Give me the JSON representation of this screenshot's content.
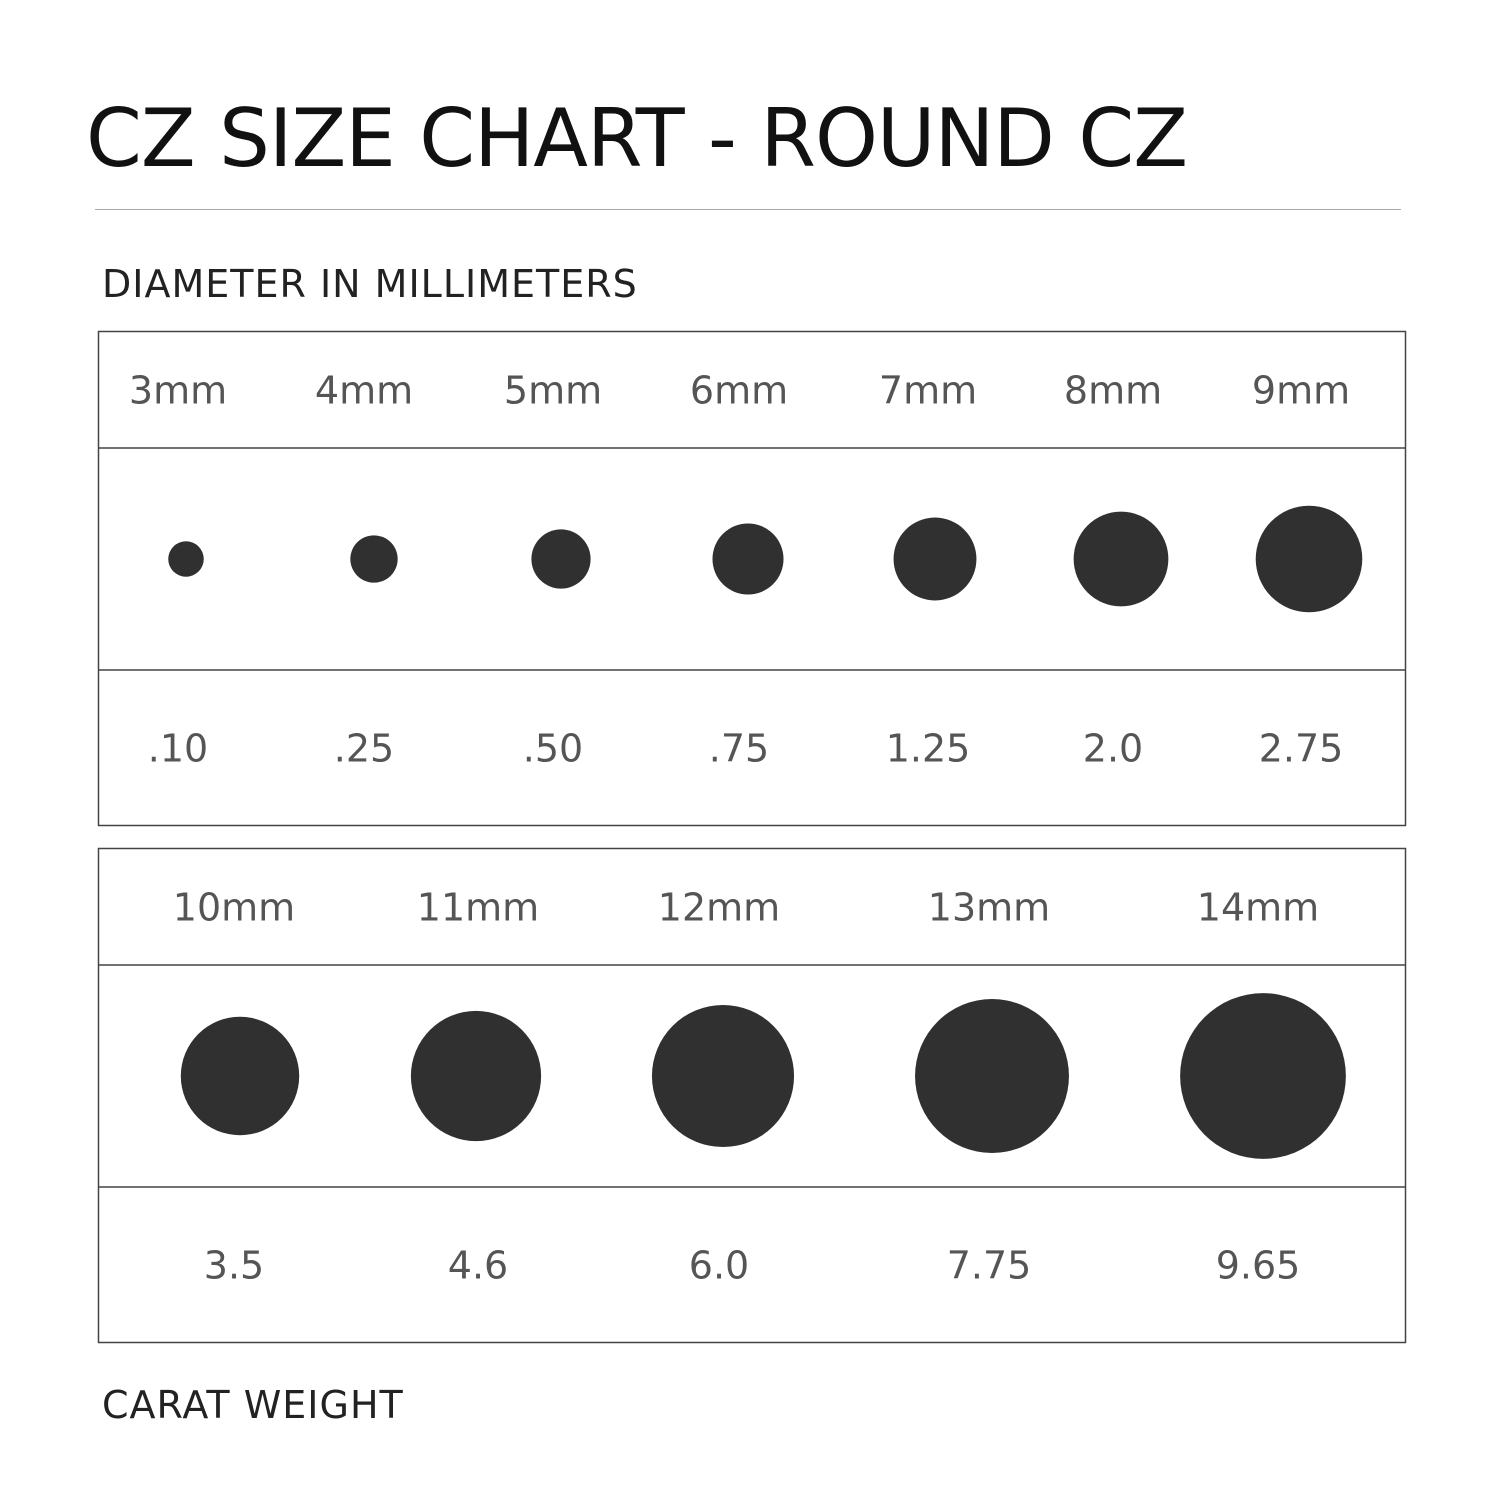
{
  "title": "CZ SIZE CHART - ROUND CZ",
  "top_label": "DIAMETER IN MILLIMETERS",
  "bottom_label": "CARAT WEIGHT",
  "colors": {
    "stone": "#303030",
    "text": "#555555",
    "border": "#444444"
  },
  "chart_data": {
    "type": "table",
    "title": "CZ SIZE CHART - ROUND CZ",
    "groups": [
      {
        "sizes": [
          "3mm",
          "4mm",
          "5mm",
          "6mm",
          "7mm",
          "8mm",
          "9mm"
        ],
        "diameters_mm": [
          3,
          4,
          5,
          6,
          7,
          8,
          9
        ],
        "carats": [
          ".10",
          ".25",
          ".50",
          ".75",
          "1.25",
          "2.0",
          "2.75"
        ]
      },
      {
        "sizes": [
          "10mm",
          "11mm",
          "12mm",
          "13mm",
          "14mm"
        ],
        "diameters_mm": [
          10,
          11,
          12,
          13,
          14
        ],
        "carats": [
          "3.5",
          "4.6",
          "6.0",
          "7.75",
          "9.65"
        ]
      }
    ]
  }
}
